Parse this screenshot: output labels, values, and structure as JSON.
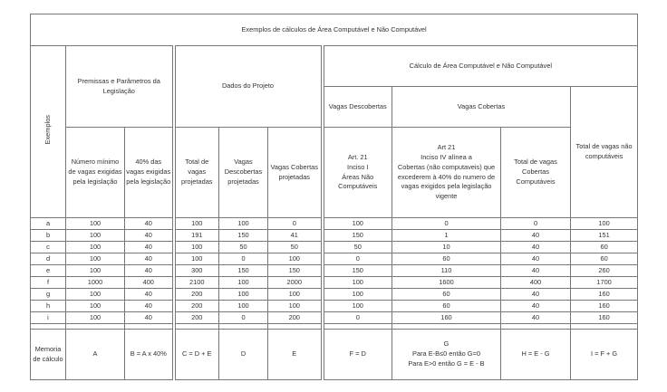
{
  "title": "Exemplos de cálculos de Área Computável e Não Computável",
  "headers": {
    "exemplos": "Exemplos",
    "premissas": "Premissas e Parâmetros da Legislação",
    "dados": "Dados do Projeto",
    "calculo": "Cálculo de Área Computável e Não Computável",
    "vagas_descobertas": "Vagas Descobertas",
    "vagas_cobertas": "Vagas Cobertas",
    "col_a": "Número mínimo de vagas exigidas pela legislação",
    "col_b": "40% das vagas exigidas pela legislação",
    "col_c": "Total de vagas projetadas",
    "col_d": "Vagas Descobertas projetadas",
    "col_e": "Vagas Cobertas projetadas",
    "col_f_1": "Art. 21",
    "col_f_2": "Inciso I",
    "col_f_3": "Áreas Não Computáveis",
    "col_g_1": "Art 21",
    "col_g_2": "Inciso IV alínea a",
    "col_g_3": "Cobertas (não computaveis) que excederem à 40% do numero de vagas exigidos pela legislação vigente",
    "col_h": "Total de vagas Cobertas Computáveis",
    "col_i": "Total de vagas não computáveis"
  },
  "rows": [
    [
      "a",
      "100",
      "40",
      "100",
      "100",
      "0",
      "100",
      "0",
      "0",
      "100"
    ],
    [
      "b",
      "100",
      "40",
      "191",
      "150",
      "41",
      "150",
      "1",
      "40",
      "151"
    ],
    [
      "c",
      "100",
      "40",
      "100",
      "50",
      "50",
      "50",
      "10",
      "40",
      "60"
    ],
    [
      "d",
      "100",
      "40",
      "100",
      "0",
      "100",
      "0",
      "60",
      "40",
      "60"
    ],
    [
      "e",
      "100",
      "40",
      "300",
      "150",
      "150",
      "150",
      "110",
      "40",
      "260"
    ],
    [
      "f",
      "1000",
      "400",
      "2100",
      "100",
      "2000",
      "100",
      "1600",
      "400",
      "1700"
    ],
    [
      "g",
      "100",
      "40",
      "200",
      "100",
      "100",
      "100",
      "60",
      "40",
      "160"
    ],
    [
      "h",
      "100",
      "40",
      "200",
      "100",
      "100",
      "100",
      "60",
      "40",
      "160"
    ],
    [
      "i",
      "100",
      "40",
      "200",
      "0",
      "200",
      "0",
      "160",
      "40",
      "160"
    ]
  ],
  "memoria": {
    "label": "Memoria de cálculo",
    "a": "A",
    "b": "B = A x 40%",
    "c": "C = D + E",
    "d": "D",
    "e": "E",
    "f": "F = D",
    "g_1": "G",
    "g_2": "Para E-B≤0 então G=0",
    "g_3": "Para E>0 então G = E - B",
    "h": "H = E - G",
    "i": "I = F + G"
  }
}
